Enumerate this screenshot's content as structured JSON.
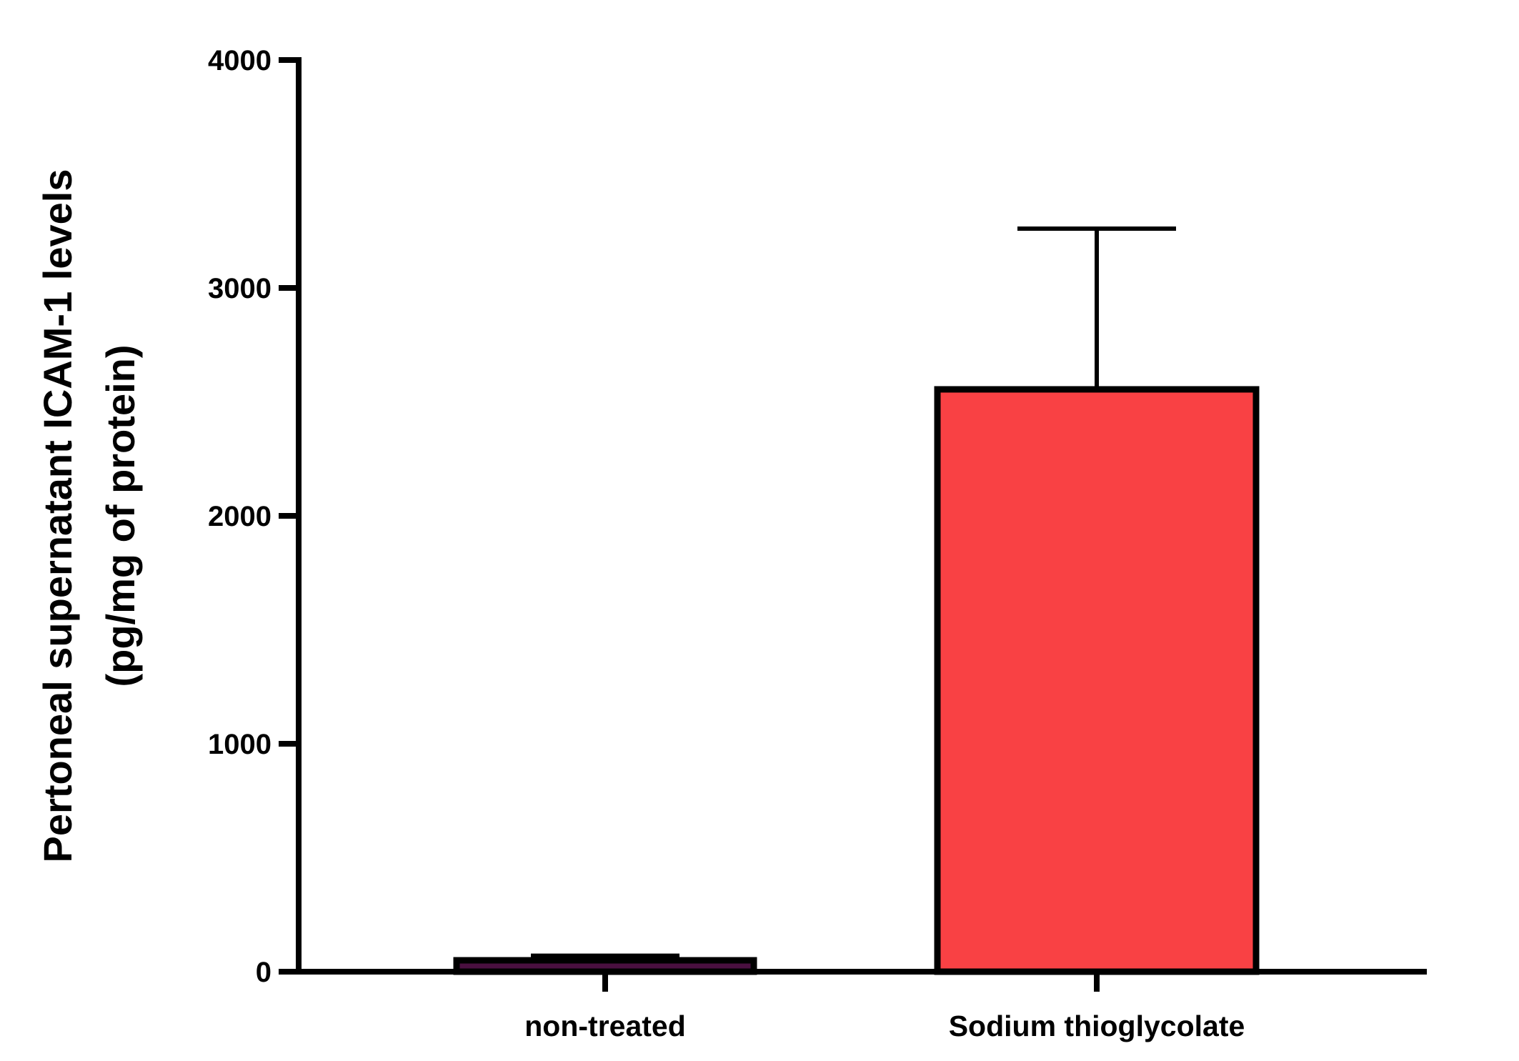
{
  "chart_data": {
    "type": "bar",
    "title": "",
    "xlabel": "",
    "ylabel": [
      "Pertoneal supernatant ICAM-1 levels",
      "(pg/mg of protein)"
    ],
    "ylim": [
      0,
      4000
    ],
    "yticks": [
      0,
      1000,
      2000,
      3000,
      4000
    ],
    "categories": [
      "non-treated",
      "Sodium thioglycolate"
    ],
    "values": [
      50,
      2555
    ],
    "error_upper": [
      70,
      3260
    ],
    "colors": [
      "#4a1040",
      "#F94144"
    ],
    "grid": false
  }
}
